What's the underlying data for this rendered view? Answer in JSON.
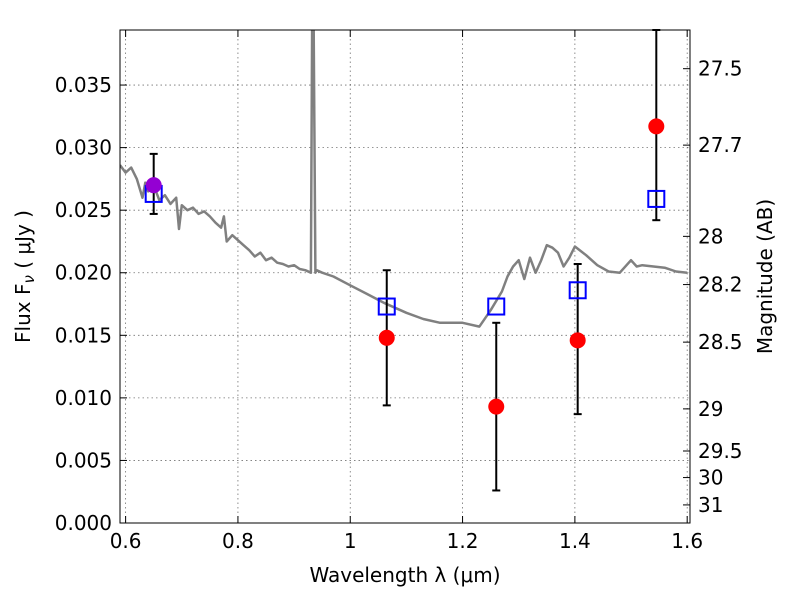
{
  "chart_data": {
    "type": "scatter",
    "xlabel": "Wavelength  λ (μm)",
    "ylabel": "Flux  F",
    "ylabel_sub": "ν",
    "ylabel_unit": " ( μJy )",
    "ylabel_right": "Magnitude (AB)",
    "xlim": [
      0.59,
      1.605
    ],
    "ylim": [
      0.0,
      0.0394
    ],
    "grid": true,
    "x_ticks": [
      0.6,
      0.8,
      1.0,
      1.2,
      1.4,
      1.6
    ],
    "x_tick_labels": [
      "0.6",
      "0.8",
      "1",
      "1.2",
      "1.4",
      "1.6"
    ],
    "y_ticks": [
      0.0,
      0.005,
      0.01,
      0.015,
      0.02,
      0.025,
      0.03,
      0.035
    ],
    "y_tick_labels": [
      "0.000",
      "0.005",
      "0.010",
      "0.015",
      "0.020",
      "0.025",
      "0.030",
      "0.035"
    ],
    "right_ticks": [
      {
        "mag": 27.5,
        "label": "27.5"
      },
      {
        "mag": 27.7,
        "label": "27.7"
      },
      {
        "mag": 28,
        "label": "28"
      },
      {
        "mag": 28.2,
        "label": "28.2"
      },
      {
        "mag": 28.5,
        "label": "28.5"
      },
      {
        "mag": 29,
        "label": "29"
      },
      {
        "mag": 29.5,
        "label": "29.5"
      },
      {
        "mag": 30,
        "label": "30"
      },
      {
        "mag": 31,
        "label": "31"
      }
    ],
    "series": [
      {
        "kind": "line",
        "color": "#808080",
        "x": [
          0.59,
          0.6,
          0.61,
          0.62,
          0.63,
          0.635,
          0.64,
          0.65,
          0.66,
          0.67,
          0.68,
          0.69,
          0.695,
          0.7,
          0.71,
          0.72,
          0.73,
          0.74,
          0.75,
          0.76,
          0.77,
          0.775,
          0.78,
          0.79,
          0.8,
          0.81,
          0.82,
          0.83,
          0.84,
          0.85,
          0.86,
          0.87,
          0.88,
          0.89,
          0.9,
          0.91,
          0.92,
          0.93,
          0.932,
          0.935,
          0.938,
          0.94,
          0.95,
          0.97,
          1.0,
          1.03,
          1.06,
          1.1,
          1.13,
          1.16,
          1.2,
          1.23,
          1.25,
          1.27,
          1.28,
          1.29,
          1.3,
          1.31,
          1.32,
          1.33,
          1.34,
          1.35,
          1.36,
          1.37,
          1.38,
          1.39,
          1.4,
          1.42,
          1.44,
          1.46,
          1.48,
          1.5,
          1.51,
          1.52,
          1.54,
          1.56,
          1.58,
          1.6
        ],
        "y": [
          0.0286,
          0.028,
          0.0284,
          0.0275,
          0.026,
          0.0272,
          0.0265,
          0.027,
          0.0258,
          0.0262,
          0.0255,
          0.026,
          0.0235,
          0.0254,
          0.025,
          0.0252,
          0.0247,
          0.0249,
          0.0245,
          0.024,
          0.0236,
          0.0245,
          0.0225,
          0.023,
          0.0226,
          0.0222,
          0.0218,
          0.0213,
          0.0216,
          0.021,
          0.0212,
          0.0208,
          0.0207,
          0.0205,
          0.0206,
          0.0203,
          0.0202,
          0.02,
          0.0394,
          0.0394,
          0.02,
          0.0202,
          0.02,
          0.0197,
          0.019,
          0.0183,
          0.0176,
          0.0168,
          0.0163,
          0.016,
          0.016,
          0.0157,
          0.017,
          0.0185,
          0.0197,
          0.0205,
          0.021,
          0.0195,
          0.0212,
          0.02,
          0.021,
          0.0222,
          0.022,
          0.0216,
          0.0205,
          0.0212,
          0.0221,
          0.0214,
          0.0206,
          0.0201,
          0.02,
          0.021,
          0.0205,
          0.0206,
          0.0205,
          0.0204,
          0.0201,
          0.02
        ]
      },
      {
        "kind": "errorbar",
        "color": "#ff0000",
        "x": [
          1.065,
          1.26,
          1.405,
          1.545
        ],
        "y": [
          0.0148,
          0.0093,
          0.0146,
          0.0317
        ],
        "yerr_low": [
          0.0094,
          0.0026,
          0.0087,
          0.0242
        ],
        "yerr_high": [
          0.0202,
          0.016,
          0.0207,
          0.0395
        ]
      },
      {
        "kind": "errorbar",
        "color": "#9400d3",
        "x": [
          0.65
        ],
        "y": [
          0.027
        ],
        "yerr_low": [
          0.0247
        ],
        "yerr_high": [
          0.0295
        ]
      },
      {
        "kind": "squares",
        "color": "#0000ff",
        "x": [
          0.65,
          1.065,
          1.26,
          1.405,
          1.545
        ],
        "y": [
          0.0263,
          0.0173,
          0.0173,
          0.0186,
          0.0259
        ]
      }
    ]
  }
}
